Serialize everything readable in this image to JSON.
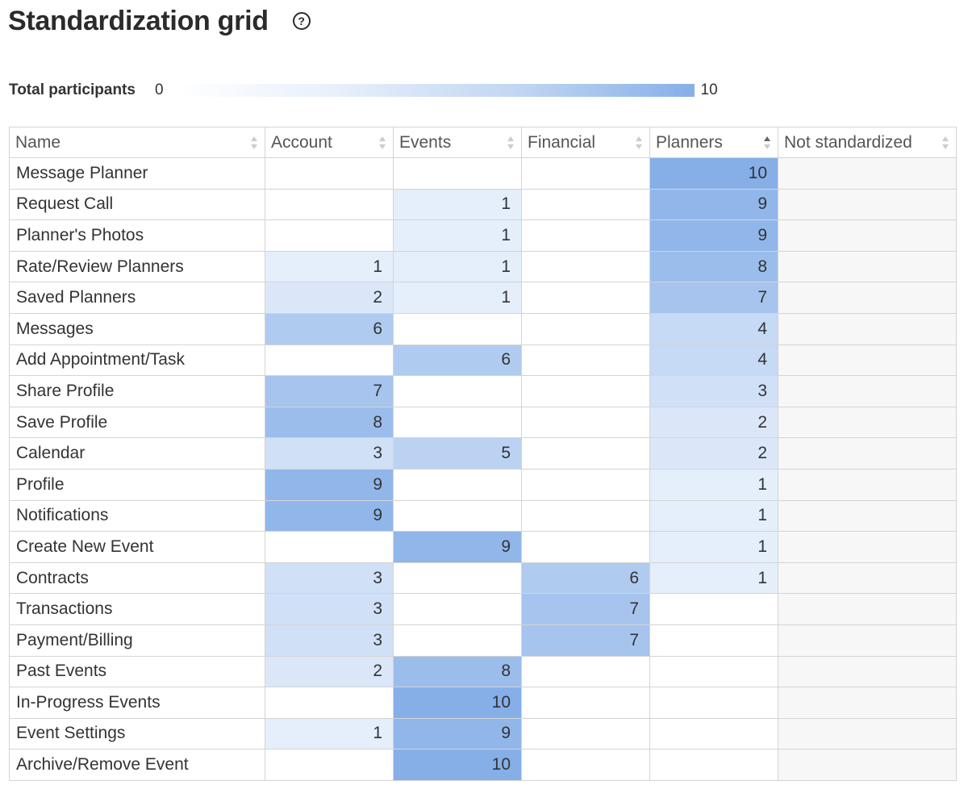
{
  "page": {
    "title": "Standardization grid",
    "help_icon": "question-circle-icon"
  },
  "legend": {
    "label": "Total participants",
    "min": "0",
    "max": "10",
    "color_low": "#ffffff",
    "color_high": "#86afe8"
  },
  "grid": {
    "columns": [
      {
        "label": "Name",
        "sort": "none"
      },
      {
        "label": "Account",
        "sort": "none"
      },
      {
        "label": "Events",
        "sort": "none"
      },
      {
        "label": "Financial",
        "sort": "none"
      },
      {
        "label": "Planners",
        "sort": "ascending"
      },
      {
        "label": "Not standardized",
        "sort": "none"
      }
    ],
    "max_value": 10,
    "rows": [
      {
        "name": "Message Planner",
        "values": [
          null,
          null,
          null,
          10,
          null
        ]
      },
      {
        "name": "Request Call",
        "values": [
          null,
          1,
          null,
          9,
          null
        ]
      },
      {
        "name": "Planner's Photos",
        "values": [
          null,
          1,
          null,
          9,
          null
        ]
      },
      {
        "name": "Rate/Review Planners",
        "values": [
          1,
          1,
          null,
          8,
          null
        ]
      },
      {
        "name": "Saved Planners",
        "values": [
          2,
          1,
          null,
          7,
          null
        ]
      },
      {
        "name": "Messages",
        "values": [
          6,
          null,
          null,
          4,
          null
        ]
      },
      {
        "name": "Add Appointment/Task",
        "values": [
          null,
          6,
          null,
          4,
          null
        ]
      },
      {
        "name": "Share Profile",
        "values": [
          7,
          null,
          null,
          3,
          null
        ]
      },
      {
        "name": "Save Profile",
        "values": [
          8,
          null,
          null,
          2,
          null
        ]
      },
      {
        "name": "Calendar",
        "values": [
          3,
          5,
          null,
          2,
          null
        ]
      },
      {
        "name": "Profile",
        "values": [
          9,
          null,
          null,
          1,
          null
        ]
      },
      {
        "name": "Notifications",
        "values": [
          9,
          null,
          null,
          1,
          null
        ]
      },
      {
        "name": "Create New Event",
        "values": [
          null,
          9,
          null,
          1,
          null
        ]
      },
      {
        "name": "Contracts",
        "values": [
          3,
          null,
          6,
          1,
          null
        ]
      },
      {
        "name": "Transactions",
        "values": [
          3,
          null,
          7,
          null,
          null
        ]
      },
      {
        "name": "Payment/Billing",
        "values": [
          3,
          null,
          7,
          null,
          null
        ]
      },
      {
        "name": "Past Events",
        "values": [
          2,
          8,
          null,
          null,
          null
        ]
      },
      {
        "name": "In-Progress Events",
        "values": [
          null,
          10,
          null,
          null,
          null
        ]
      },
      {
        "name": "Event Settings",
        "values": [
          1,
          9,
          null,
          null,
          null
        ]
      },
      {
        "name": "Archive/Remove Event",
        "values": [
          null,
          10,
          null,
          null,
          null
        ]
      }
    ]
  }
}
